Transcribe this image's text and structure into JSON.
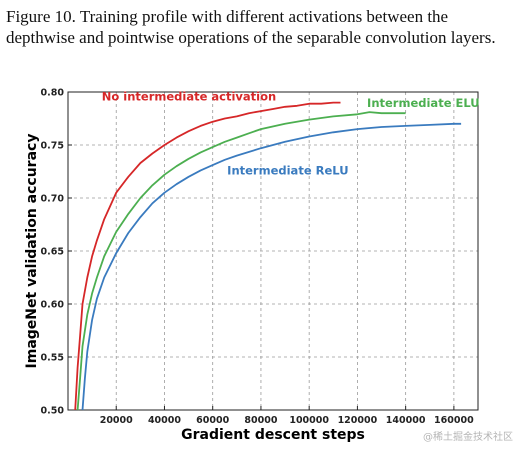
{
  "caption": {
    "label": "Figure 10.",
    "text": "Training profile with different activations between the depthwise and pointwise operations of the separable convolution layers."
  },
  "watermark": "@稀土掘金技术社区",
  "chart_data": {
    "type": "line",
    "title": "",
    "xlabel": "Gradient descent steps",
    "ylabel": "ImageNet validation accuracy",
    "xlim": [
      0,
      170000
    ],
    "ylim": [
      0.5,
      0.8
    ],
    "xticks": [
      20000,
      40000,
      60000,
      80000,
      100000,
      120000,
      140000,
      160000
    ],
    "xtick_labels": [
      "20000",
      "40000",
      "60000",
      "80000",
      "100000",
      "120000",
      "140000",
      "160000"
    ],
    "yticks": [
      0.5,
      0.55,
      0.6,
      0.65,
      0.7,
      0.75,
      0.8
    ],
    "ytick_labels": [
      "0.50",
      "0.55",
      "0.60",
      "0.65",
      "0.70",
      "0.75",
      "0.80"
    ],
    "grid": true,
    "series": [
      {
        "name": "No intermediate activation",
        "color": "#d62728",
        "x": [
          3000,
          4000,
          5000,
          6000,
          8000,
          10000,
          12000,
          15000,
          20000,
          25000,
          30000,
          35000,
          40000,
          45000,
          50000,
          55000,
          60000,
          65000,
          70000,
          75000,
          80000,
          85000,
          90000,
          95000,
          100000,
          105000,
          110000,
          113000
        ],
        "y": [
          0.5,
          0.54,
          0.57,
          0.6,
          0.625,
          0.645,
          0.66,
          0.68,
          0.705,
          0.72,
          0.733,
          0.742,
          0.75,
          0.757,
          0.763,
          0.768,
          0.772,
          0.775,
          0.777,
          0.78,
          0.782,
          0.784,
          0.786,
          0.787,
          0.789,
          0.789,
          0.79,
          0.79
        ]
      },
      {
        "name": "Intermediate ELU",
        "color": "#4caf50",
        "x": [
          4000,
          5000,
          6000,
          8000,
          10000,
          12000,
          15000,
          20000,
          25000,
          30000,
          35000,
          40000,
          45000,
          50000,
          55000,
          60000,
          65000,
          70000,
          75000,
          80000,
          90000,
          100000,
          110000,
          120000,
          125000,
          130000,
          140000
        ],
        "y": [
          0.5,
          0.53,
          0.56,
          0.59,
          0.61,
          0.625,
          0.645,
          0.668,
          0.685,
          0.7,
          0.712,
          0.722,
          0.73,
          0.737,
          0.743,
          0.748,
          0.753,
          0.757,
          0.761,
          0.765,
          0.77,
          0.774,
          0.777,
          0.779,
          0.781,
          0.78,
          0.78
        ]
      },
      {
        "name": "Intermediate ReLU",
        "color": "#3a7bbf",
        "x": [
          6000,
          7000,
          8000,
          10000,
          12000,
          15000,
          20000,
          25000,
          30000,
          35000,
          40000,
          45000,
          50000,
          55000,
          60000,
          65000,
          70000,
          80000,
          90000,
          100000,
          110000,
          120000,
          130000,
          140000,
          150000,
          160000,
          163000
        ],
        "y": [
          0.5,
          0.53,
          0.555,
          0.585,
          0.605,
          0.625,
          0.648,
          0.667,
          0.682,
          0.695,
          0.705,
          0.713,
          0.72,
          0.726,
          0.731,
          0.736,
          0.74,
          0.747,
          0.753,
          0.758,
          0.762,
          0.765,
          0.767,
          0.768,
          0.769,
          0.77,
          0.77
        ]
      }
    ],
    "annotations": [
      {
        "text": "No intermediate activation",
        "color": "#d62728",
        "x": 14000,
        "y": 0.792
      },
      {
        "text": "Intermediate ELU",
        "color": "#4caf50",
        "x": 124000,
        "y": 0.786
      },
      {
        "text": "Intermediate ReLU",
        "color": "#3a7bbf",
        "x": 66000,
        "y": 0.722
      }
    ]
  }
}
